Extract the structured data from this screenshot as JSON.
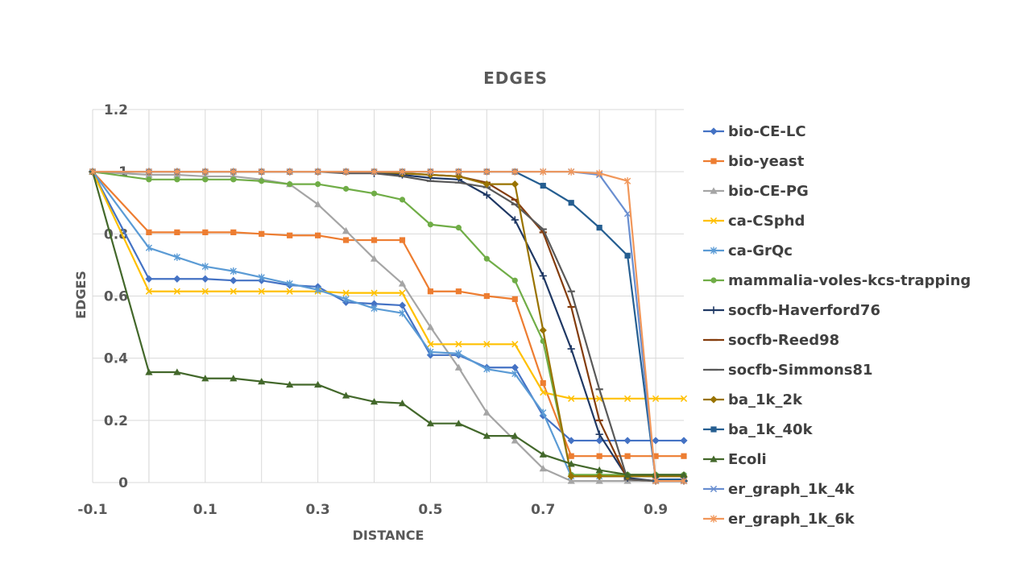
{
  "chart_data": {
    "type": "line",
    "title": "EDGES",
    "xlabel": "DISTANCE",
    "ylabel": "EDGES",
    "xlim": [
      -0.1,
      0.95
    ],
    "ylim": [
      0,
      1.2
    ],
    "x_ticks": [
      "-0.1",
      "0.1",
      "0.3",
      "0.5",
      "0.7",
      "0.9"
    ],
    "x_tick_values": [
      -0.1,
      0.1,
      0.3,
      0.5,
      0.7,
      0.9
    ],
    "y_ticks": [
      "0",
      "0.2",
      "0.4",
      "0.6",
      "0.8",
      "1",
      "1.2"
    ],
    "y_tick_values": [
      0,
      0.2,
      0.4,
      0.6,
      0.8,
      1.0,
      1.2
    ],
    "grid": true,
    "legend_position": "right",
    "x": [
      -0.1,
      0.0,
      0.05,
      0.1,
      0.15,
      0.2,
      0.25,
      0.3,
      0.35,
      0.4,
      0.45,
      0.5,
      0.55,
      0.6,
      0.65,
      0.7,
      0.75,
      0.8,
      0.85,
      0.9,
      0.95
    ],
    "series": [
      {
        "name": "bio-CE-LC",
        "color": "#4472C4",
        "marker": "diamond",
        "values": [
          1,
          0.655,
          0.655,
          0.655,
          0.65,
          0.65,
          0.635,
          0.63,
          0.58,
          0.575,
          0.57,
          0.41,
          0.41,
          0.37,
          0.37,
          0.215,
          0.135,
          0.135,
          0.135,
          0.135,
          0.135
        ]
      },
      {
        "name": "bio-yeast",
        "color": "#ED7D31",
        "marker": "square",
        "values": [
          1,
          0.805,
          0.805,
          0.805,
          0.805,
          0.8,
          0.795,
          0.795,
          0.78,
          0.78,
          0.78,
          0.615,
          0.615,
          0.6,
          0.59,
          0.32,
          0.085,
          0.085,
          0.085,
          0.085,
          0.085
        ]
      },
      {
        "name": "bio-CE-PG",
        "color": "#A5A5A5",
        "marker": "triangle",
        "values": [
          1,
          0.99,
          0.99,
          0.985,
          0.985,
          0.975,
          0.96,
          0.895,
          0.81,
          0.72,
          0.64,
          0.5,
          0.37,
          0.225,
          0.135,
          0.045,
          0.005,
          0.005,
          0.005,
          0.005,
          0.005
        ]
      },
      {
        "name": "ca-CSphd",
        "color": "#FFC000",
        "marker": "x",
        "values": [
          1,
          0.615,
          0.615,
          0.615,
          0.615,
          0.615,
          0.615,
          0.615,
          0.61,
          0.61,
          0.61,
          0.445,
          0.445,
          0.445,
          0.445,
          0.29,
          0.27,
          0.27,
          0.27,
          0.27,
          0.27
        ]
      },
      {
        "name": "ca-GrQc",
        "color": "#5B9BD5",
        "marker": "star",
        "values": [
          1,
          0.755,
          0.725,
          0.695,
          0.68,
          0.66,
          0.64,
          0.62,
          0.59,
          0.56,
          0.545,
          0.42,
          0.415,
          0.365,
          0.35,
          0.225,
          0.02,
          0.02,
          0.02,
          0.02,
          0.02
        ]
      },
      {
        "name": "mammalia-voles-kcs-trapping",
        "color": "#70AD47",
        "marker": "circle",
        "values": [
          1,
          0.975,
          0.975,
          0.975,
          0.975,
          0.97,
          0.96,
          0.96,
          0.945,
          0.93,
          0.91,
          0.83,
          0.82,
          0.72,
          0.65,
          0.455,
          0.025,
          0.025,
          0.025,
          0.025,
          0.025
        ]
      },
      {
        "name": "socfb-Haverford76",
        "color": "#1F3864",
        "marker": "plus",
        "values": [
          1,
          1,
          1,
          1,
          1,
          1,
          1,
          1,
          1,
          0.995,
          0.99,
          0.98,
          0.975,
          0.925,
          0.845,
          0.665,
          0.43,
          0.155,
          0.015,
          0.005,
          0.005
        ]
      },
      {
        "name": "socfb-Reed98",
        "color": "#843C0C",
        "marker": "dash",
        "values": [
          1,
          1,
          1,
          1,
          1,
          1,
          1,
          1,
          1,
          1,
          0.995,
          0.99,
          0.985,
          0.965,
          0.91,
          0.805,
          0.565,
          0.2,
          0.01,
          0.005,
          0.005
        ]
      },
      {
        "name": "socfb-Simmons81",
        "color": "#595959",
        "marker": "dash",
        "values": [
          1,
          1,
          1,
          1,
          1,
          1,
          1,
          1,
          0.995,
          0.995,
          0.985,
          0.97,
          0.965,
          0.95,
          0.895,
          0.815,
          0.615,
          0.3,
          0.01,
          0.005,
          0.005
        ]
      },
      {
        "name": "ba_1k_2k",
        "color": "#997300",
        "marker": "diamond",
        "values": [
          1,
          1,
          1,
          1,
          1,
          1,
          1,
          1,
          1,
          1,
          0.995,
          0.99,
          0.985,
          0.96,
          0.96,
          0.49,
          0.02,
          0.02,
          0.02,
          0.02,
          0.02
        ]
      },
      {
        "name": "ba_1k_40k",
        "color": "#255E91",
        "marker": "square",
        "values": [
          1,
          1,
          1,
          1,
          1,
          1,
          1,
          1,
          1,
          1,
          1,
          1,
          1,
          1,
          1,
          0.955,
          0.9,
          0.82,
          0.73,
          0.01,
          0.01
        ]
      },
      {
        "name": "Ecoli",
        "color": "#43682B",
        "marker": "triangle",
        "values": [
          1,
          0.355,
          0.355,
          0.335,
          0.335,
          0.325,
          0.315,
          0.315,
          0.28,
          0.26,
          0.255,
          0.19,
          0.19,
          0.15,
          0.15,
          0.09,
          0.06,
          0.04,
          0.025,
          0.025,
          0.025
        ]
      },
      {
        "name": "er_graph_1k_4k",
        "color": "#698ED0",
        "marker": "x",
        "values": [
          1,
          1,
          1,
          1,
          1,
          1,
          1,
          1,
          1,
          1,
          1,
          1,
          1,
          1,
          1,
          1,
          1,
          0.99,
          0.865,
          0.005,
          0.005
        ]
      },
      {
        "name": "er_graph_1k_6k",
        "color": "#F1975A",
        "marker": "star",
        "values": [
          1,
          1,
          1,
          1,
          1,
          1,
          1,
          1,
          1,
          1,
          1,
          1,
          1,
          1,
          1,
          1,
          1,
          0.995,
          0.97,
          0.005,
          0.005
        ]
      }
    ]
  }
}
